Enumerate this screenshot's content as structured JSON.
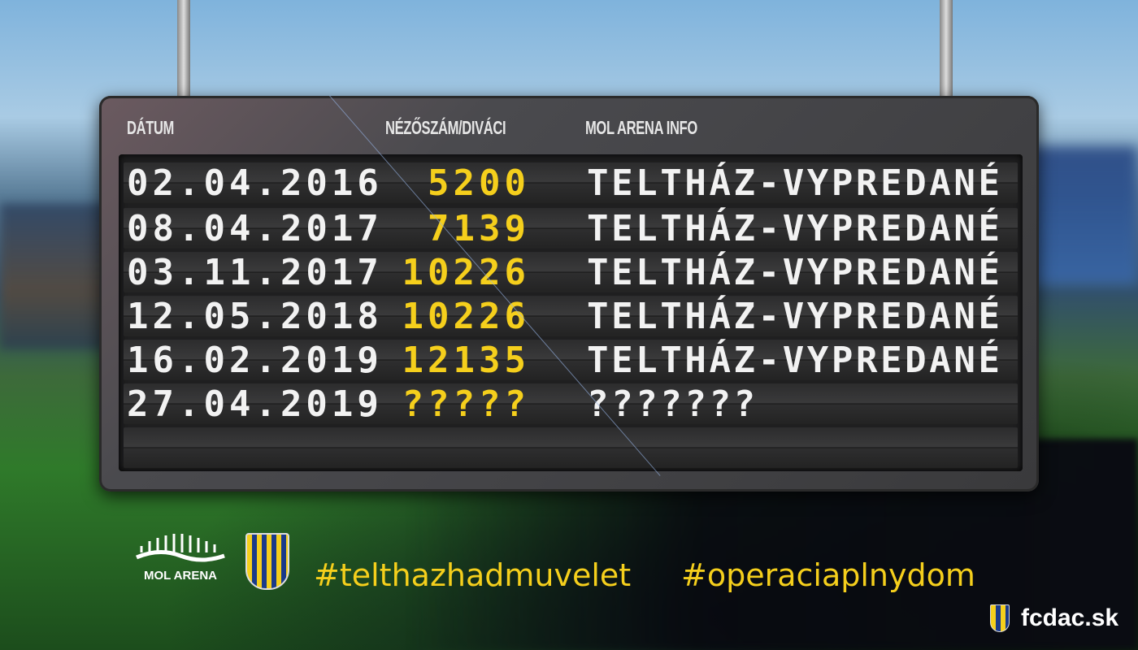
{
  "board": {
    "headers": {
      "date": "DÁTUM",
      "attendance": "NÉZŐSZÁM/DIVÁCI",
      "info": "MOL ARENA INFO"
    },
    "rows": [
      {
        "date": "02.04.2016",
        "attendance": "5200",
        "info": "TELTHÁZ-VYPREDANÉ"
      },
      {
        "date": "08.04.2017",
        "attendance": "7139",
        "info": "TELTHÁZ-VYPREDANÉ"
      },
      {
        "date": "03.11.2017",
        "attendance": "10226",
        "info": "TELTHÁZ-VYPREDANÉ"
      },
      {
        "date": "12.05.2018",
        "attendance": "10226",
        "info": "TELTHÁZ-VYPREDANÉ"
      },
      {
        "date": "16.02.2019",
        "attendance": "12135",
        "info": "TELTHÁZ-VYPREDANÉ"
      },
      {
        "date": "27.04.2019",
        "attendance": "?????",
        "info": "???????"
      }
    ]
  },
  "footer": {
    "mol_arena_logo": "MOL ARENA",
    "club_logo": "FC DAC",
    "hashtag1": "#telthazhadmuvelet",
    "hashtag2": "#operaciaplnydom",
    "website": "fcdac.sk"
  },
  "colors": {
    "accent": "#f5cf1c",
    "text": "#f2f2f2"
  }
}
